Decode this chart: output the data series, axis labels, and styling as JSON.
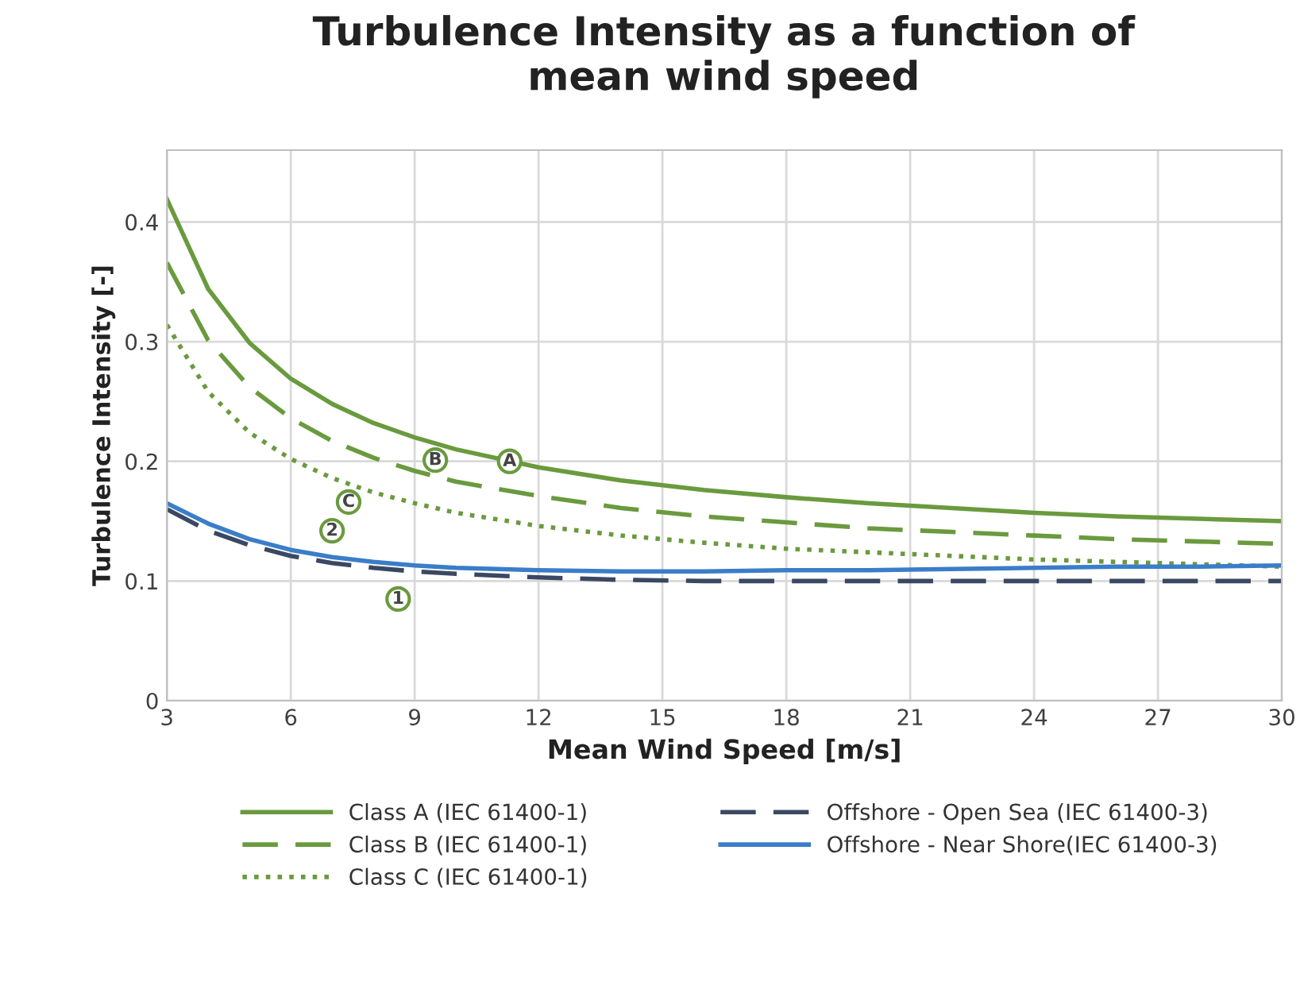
{
  "chart_data": {
    "type": "line",
    "title": "Turbulence Intensity as a function of\nmean wind speed",
    "xlabel": "Mean Wind Speed [m/s]",
    "ylabel": "Turbulence Intensity [-]",
    "x": [
      3,
      4,
      5,
      6,
      7,
      8,
      9,
      10,
      12,
      14,
      16,
      18,
      20,
      22,
      24,
      26,
      28,
      30
    ],
    "series": [
      {
        "name": "Class A (IEC 61400-1)",
        "color": "#6a9a3e",
        "line_style": "solid",
        "values": [
          0.419,
          0.344,
          0.299,
          0.269,
          0.248,
          0.232,
          0.22,
          0.21,
          0.195,
          0.184,
          0.176,
          0.17,
          0.165,
          0.161,
          0.157,
          0.154,
          0.152,
          0.15
        ]
      },
      {
        "name": "Class B (IEC 61400-1)",
        "color": "#6a9a3e",
        "line_style": "dashed",
        "values": [
          0.366,
          0.301,
          0.262,
          0.236,
          0.217,
          0.203,
          0.192,
          0.183,
          0.171,
          0.161,
          0.154,
          0.149,
          0.144,
          0.141,
          0.138,
          0.135,
          0.133,
          0.131
        ]
      },
      {
        "name": "Class C (IEC 61400-1)",
        "color": "#6a9a3e",
        "line_style": "dotted",
        "values": [
          0.314,
          0.258,
          0.224,
          0.202,
          0.186,
          0.174,
          0.165,
          0.157,
          0.146,
          0.138,
          0.132,
          0.127,
          0.124,
          0.121,
          0.118,
          0.116,
          0.114,
          0.112
        ]
      },
      {
        "name": "Offshore - Open Sea (IEC 61400-3)",
        "color": "#3b4863",
        "line_style": "dashed",
        "values": [
          0.16,
          0.142,
          0.13,
          0.121,
          0.115,
          0.111,
          0.108,
          0.106,
          0.103,
          0.101,
          0.1,
          0.1,
          0.1,
          0.1,
          0.1,
          0.1,
          0.1,
          0.1
        ]
      },
      {
        "name": "Offshore - Near Shore(IEC 61400-3)",
        "color": "#3a7dc9",
        "line_style": "solid",
        "values": [
          0.165,
          0.148,
          0.135,
          0.126,
          0.12,
          0.116,
          0.113,
          0.111,
          0.109,
          0.108,
          0.108,
          0.109,
          0.109,
          0.11,
          0.111,
          0.112,
          0.112,
          0.113
        ]
      }
    ],
    "annotations": [
      {
        "text": "A",
        "x": 11.3,
        "y": 0.2
      },
      {
        "text": "B",
        "x": 9.5,
        "y": 0.201
      },
      {
        "text": "C",
        "x": 7.4,
        "y": 0.166
      },
      {
        "text": "2",
        "x": 7.0,
        "y": 0.142
      },
      {
        "text": "1",
        "x": 8.6,
        "y": 0.085
      }
    ],
    "xlim": [
      3,
      30
    ],
    "xticks": [
      3,
      6,
      9,
      12,
      15,
      18,
      21,
      24,
      27,
      30
    ],
    "ylim": [
      0,
      0.46
    ],
    "yticks": [
      0,
      0.1,
      0.2,
      0.3,
      0.4
    ],
    "grid": true,
    "legend": "bottom"
  }
}
